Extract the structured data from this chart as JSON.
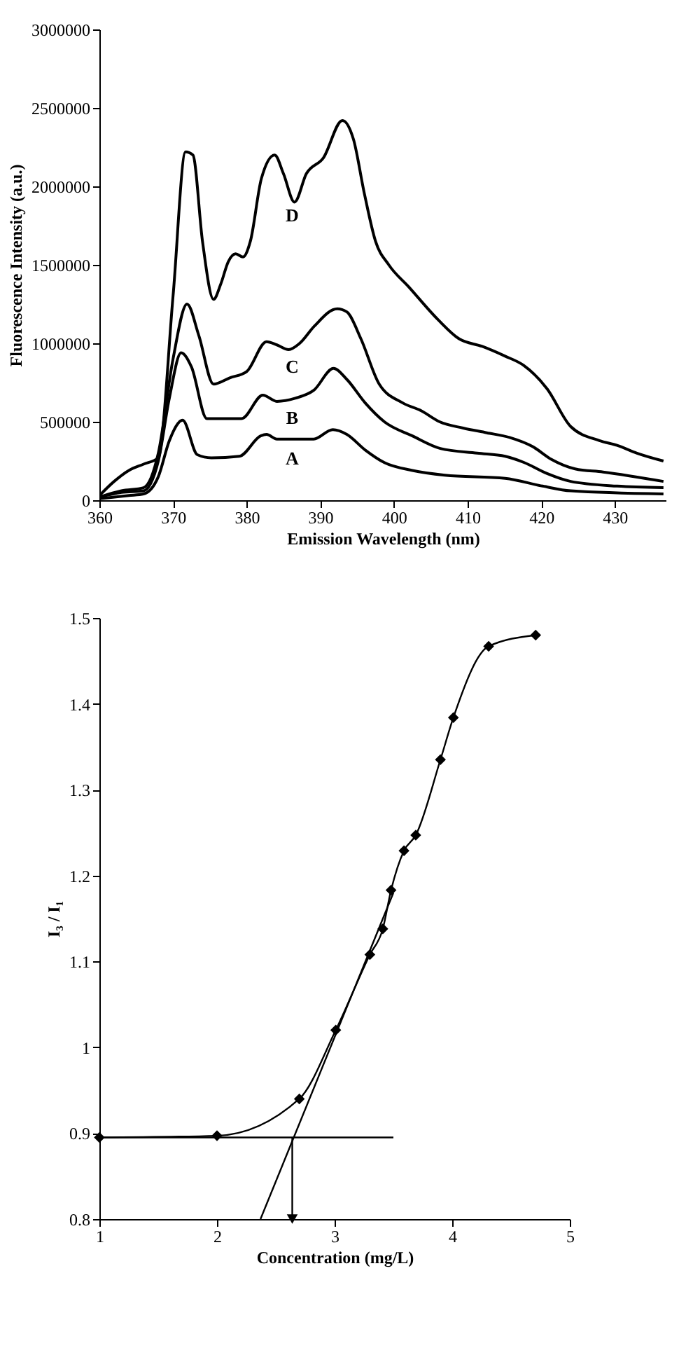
{
  "chart_data": [
    {
      "type": "line",
      "xlabel": "Emission Wavelength (nm)",
      "ylabel": "Fluorescence Intensity (a.u.)",
      "xlim": [
        360,
        437
      ],
      "xticks": [
        360,
        370,
        380,
        390,
        400,
        410,
        420,
        430
      ],
      "ylim": [
        0,
        3000000
      ],
      "yticks": [
        0,
        500000,
        1000000,
        1500000,
        2000000,
        2500000,
        3000000
      ],
      "grid": false,
      "legend": false,
      "marker": "none",
      "line_style": "solid",
      "series": [
        {
          "name": "A",
          "color": "#000000",
          "x": [
            360,
            364,
            366,
            368,
            369.5,
            371.3,
            373.3,
            375.2,
            379,
            381.9,
            382.7,
            384.1,
            389.1,
            391.7,
            393.6,
            396.1,
            398.7,
            402.5,
            406.9,
            415.1,
            420.2,
            424,
            436.6
          ],
          "values": [
            10000,
            30000,
            40000,
            150000,
            380000,
            510000,
            290000,
            270000,
            280000,
            410000,
            420000,
            390000,
            390000,
            450000,
            420000,
            320000,
            240000,
            190000,
            160000,
            140000,
            90000,
            60000,
            40000
          ]
        },
        {
          "name": "B",
          "color": "#000000",
          "x": [
            360,
            363,
            366,
            368,
            369.5,
            371.1,
            372.5,
            374.6,
            379.3,
            382.2,
            384.1,
            386.6,
            389.1,
            391.8,
            393.6,
            396.1,
            398.7,
            402.5,
            406.3,
            411.3,
            415.1,
            417.7,
            420.8,
            424,
            430.3,
            436.6
          ],
          "values": [
            20000,
            50000,
            60000,
            250000,
            650000,
            940000,
            850000,
            520000,
            520000,
            670000,
            630000,
            650000,
            700000,
            840000,
            770000,
            620000,
            500000,
            410000,
            330000,
            300000,
            280000,
            240000,
            170000,
            120000,
            90000,
            80000
          ]
        },
        {
          "name": "C",
          "color": "#000000",
          "x": [
            360,
            363,
            366,
            368,
            370,
            371.9,
            373.5,
            375.5,
            377.7,
            380,
            382.7,
            384.1,
            385.7,
            387.2,
            389.2,
            392.3,
            393.6,
            395.5,
            398,
            401.2,
            403.7,
            406.2,
            409.4,
            412.6,
            415.7,
            418.9,
            421.4,
            424.6,
            428.4,
            436.6
          ],
          "values": [
            20000,
            60000,
            80000,
            300000,
            900000,
            1250000,
            1050000,
            740000,
            780000,
            820000,
            1010000,
            990000,
            960000,
            1000000,
            1110000,
            1220000,
            1200000,
            1030000,
            740000,
            620000,
            570000,
            500000,
            460000,
            430000,
            400000,
            340000,
            260000,
            200000,
            180000,
            120000
          ]
        },
        {
          "name": "D",
          "color": "#000000",
          "x": [
            360,
            362,
            364,
            366,
            368,
            370,
            371.7,
            372.7,
            374,
            375.5,
            376.5,
            377.5,
            378.5,
            379.5,
            380.5,
            382,
            383.8,
            385,
            386.5,
            388.1,
            390.4,
            393,
            394.5,
            396,
            397.5,
            399.3,
            402,
            406,
            408.8,
            412,
            415,
            417.6,
            420.8,
            424,
            427.9,
            430.3,
            433,
            436.6
          ],
          "values": [
            30000,
            120000,
            190000,
            230000,
            270000,
            1300000,
            2220000,
            2200000,
            1650000,
            1280000,
            1380000,
            1520000,
            1570000,
            1550000,
            1650000,
            2050000,
            2200000,
            2080000,
            1900000,
            2080000,
            2180000,
            2420000,
            2300000,
            1950000,
            1650000,
            1500000,
            1360000,
            1150000,
            1030000,
            980000,
            920000,
            860000,
            710000,
            470000,
            380000,
            350000,
            300000,
            250000
          ]
        }
      ]
    },
    {
      "type": "line",
      "xlabel": "Concentration (mg/L)",
      "ylabel": "I₃ / I₁",
      "xlim": [
        1,
        5
      ],
      "xticks": [
        1,
        2,
        3,
        4,
        5
      ],
      "ylim": [
        0.8,
        1.5
      ],
      "yticks": [
        0.8,
        0.9,
        1,
        1.1,
        1.2,
        1.3,
        1.4,
        1.5
      ],
      "grid": false,
      "line_style": "solid",
      "series": [
        {
          "color": "#000000",
          "marker": "diamond",
          "x": [
            1,
            2,
            2.7,
            3.01,
            3.3,
            3.41,
            3.48,
            3.59,
            3.69,
            3.9,
            4.01,
            4.31,
            4.71
          ],
          "values": [
            0.895,
            0.897,
            0.94,
            1.02,
            1.108,
            1.138,
            1.183,
            1.229,
            1.247,
            1.335,
            1.384,
            1.467,
            1.48
          ]
        },
        {
          "color": "#000000",
          "marker": "none",
          "x": [
            2.37,
            3.5
          ],
          "values": [
            0.8,
            1.18
          ]
        },
        {
          "color": "#000000",
          "marker": "none",
          "x": [
            1,
            3.5
          ],
          "values": [
            0.895,
            0.895
          ]
        },
        {
          "color": "#000000",
          "marker": "triangle",
          "x": [
            2.64,
            2.64
          ],
          "values": [
            0.895,
            0.8
          ]
        }
      ]
    }
  ]
}
